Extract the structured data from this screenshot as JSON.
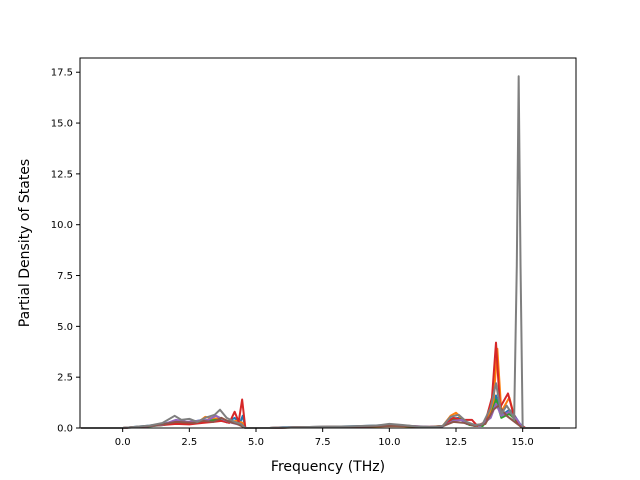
{
  "chart_data": {
    "type": "line",
    "title": "",
    "xlabel": "Frequency (THz)",
    "ylabel": "Partial Density of States",
    "xlim": [
      -1.6,
      17.0
    ],
    "ylim": [
      0,
      18.2
    ],
    "xticks": [
      0.0,
      2.5,
      5.0,
      7.5,
      10.0,
      12.5,
      15.0
    ],
    "xtick_labels": [
      "0.0",
      "2.5",
      "5.0",
      "7.5",
      "10.0",
      "12.5",
      "15.0"
    ],
    "yticks": [
      0.0,
      2.5,
      5.0,
      7.5,
      10.0,
      12.5,
      15.0,
      17.5
    ],
    "ytick_labels": [
      "0.0",
      "2.5",
      "5.0",
      "7.5",
      "10.0",
      "12.5",
      "15.0",
      "17.5"
    ],
    "grid": false,
    "legend": "none",
    "series": [
      {
        "color": "#1f77b4",
        "points": [
          [
            -1.55,
            0
          ],
          [
            0.0,
            0.0
          ],
          [
            0.5,
            0.06
          ],
          [
            1.0,
            0.12
          ],
          [
            1.5,
            0.2
          ],
          [
            2.0,
            0.35
          ],
          [
            2.3,
            0.22
          ],
          [
            2.6,
            0.3
          ],
          [
            3.0,
            0.4
          ],
          [
            3.3,
            0.35
          ],
          [
            3.6,
            0.45
          ],
          [
            3.9,
            0.28
          ],
          [
            4.2,
            0.5
          ],
          [
            4.4,
            0.25
          ],
          [
            4.5,
            0.6
          ],
          [
            4.6,
            0.0
          ],
          [
            5.5,
            0.0
          ],
          [
            6.0,
            0.04
          ],
          [
            7.0,
            0.05
          ],
          [
            8.0,
            0.07
          ],
          [
            9.0,
            0.1
          ],
          [
            10.0,
            0.15
          ],
          [
            10.5,
            0.12
          ],
          [
            11.0,
            0.08
          ],
          [
            11.5,
            0.05
          ],
          [
            12.0,
            0.1
          ],
          [
            12.3,
            0.45
          ],
          [
            12.6,
            0.5
          ],
          [
            12.9,
            0.2
          ],
          [
            13.2,
            0.1
          ],
          [
            13.5,
            0.15
          ],
          [
            13.8,
            0.8
          ],
          [
            14.0,
            1.6
          ],
          [
            14.2,
            0.6
          ],
          [
            14.5,
            0.9
          ],
          [
            14.7,
            0.6
          ],
          [
            14.9,
            0.2
          ],
          [
            15.1,
            0.0
          ],
          [
            16.4,
            0.0
          ]
        ]
      },
      {
        "color": "#ff7f0e",
        "points": [
          [
            -1.55,
            0
          ],
          [
            0.0,
            0.0
          ],
          [
            0.5,
            0.05
          ],
          [
            1.0,
            0.1
          ],
          [
            1.5,
            0.15
          ],
          [
            2.0,
            0.25
          ],
          [
            2.4,
            0.2
          ],
          [
            2.8,
            0.25
          ],
          [
            3.1,
            0.55
          ],
          [
            3.4,
            0.45
          ],
          [
            3.7,
            0.5
          ],
          [
            4.0,
            0.3
          ],
          [
            4.3,
            0.35
          ],
          [
            4.5,
            0.25
          ],
          [
            4.6,
            0.0
          ],
          [
            5.5,
            0.0
          ],
          [
            6.5,
            0.03
          ],
          [
            7.5,
            0.05
          ],
          [
            8.5,
            0.06
          ],
          [
            9.5,
            0.08
          ],
          [
            10.0,
            0.1
          ],
          [
            10.8,
            0.08
          ],
          [
            11.3,
            0.05
          ],
          [
            12.0,
            0.1
          ],
          [
            12.3,
            0.6
          ],
          [
            12.5,
            0.75
          ],
          [
            12.8,
            0.35
          ],
          [
            13.2,
            0.1
          ],
          [
            13.6,
            0.2
          ],
          [
            13.9,
            1.2
          ],
          [
            14.05,
            3.9
          ],
          [
            14.2,
            0.8
          ],
          [
            14.5,
            1.5
          ],
          [
            14.7,
            0.5
          ],
          [
            14.9,
            0.1
          ],
          [
            15.1,
            0.0
          ],
          [
            16.4,
            0.0
          ]
        ]
      },
      {
        "color": "#2ca02c",
        "points": [
          [
            -1.55,
            0
          ],
          [
            0.0,
            0.0
          ],
          [
            0.5,
            0.04
          ],
          [
            1.0,
            0.08
          ],
          [
            1.5,
            0.14
          ],
          [
            2.0,
            0.3
          ],
          [
            2.4,
            0.25
          ],
          [
            2.8,
            0.3
          ],
          [
            3.2,
            0.35
          ],
          [
            3.5,
            0.4
          ],
          [
            3.8,
            0.35
          ],
          [
            4.1,
            0.3
          ],
          [
            4.4,
            0.2
          ],
          [
            4.6,
            0.0
          ],
          [
            5.5,
            0.0
          ],
          [
            6.5,
            0.03
          ],
          [
            7.5,
            0.04
          ],
          [
            8.5,
            0.06
          ],
          [
            9.5,
            0.09
          ],
          [
            10.2,
            0.12
          ],
          [
            10.8,
            0.08
          ],
          [
            11.5,
            0.05
          ],
          [
            12.0,
            0.08
          ],
          [
            12.4,
            0.4
          ],
          [
            12.7,
            0.45
          ],
          [
            13.0,
            0.15
          ],
          [
            13.5,
            0.1
          ],
          [
            13.8,
            0.6
          ],
          [
            14.0,
            1.4
          ],
          [
            14.2,
            0.5
          ],
          [
            14.5,
            0.7
          ],
          [
            14.8,
            0.3
          ],
          [
            15.0,
            0.0
          ],
          [
            16.4,
            0.0
          ]
        ]
      },
      {
        "color": "#d62728",
        "points": [
          [
            -1.55,
            0
          ],
          [
            0.0,
            0.0
          ],
          [
            0.5,
            0.05
          ],
          [
            1.0,
            0.1
          ],
          [
            1.5,
            0.15
          ],
          [
            2.0,
            0.2
          ],
          [
            2.5,
            0.18
          ],
          [
            3.0,
            0.25
          ],
          [
            3.4,
            0.3
          ],
          [
            3.7,
            0.35
          ],
          [
            4.0,
            0.25
          ],
          [
            4.2,
            0.8
          ],
          [
            4.35,
            0.3
          ],
          [
            4.48,
            1.4
          ],
          [
            4.6,
            0.0
          ],
          [
            5.5,
            0.0
          ],
          [
            6.5,
            0.04
          ],
          [
            7.5,
            0.05
          ],
          [
            8.5,
            0.07
          ],
          [
            9.5,
            0.1
          ],
          [
            10.3,
            0.14
          ],
          [
            10.9,
            0.09
          ],
          [
            11.5,
            0.05
          ],
          [
            12.0,
            0.1
          ],
          [
            12.4,
            0.5
          ],
          [
            12.7,
            0.4
          ],
          [
            13.1,
            0.4
          ],
          [
            13.3,
            0.1
          ],
          [
            13.6,
            0.3
          ],
          [
            13.85,
            1.5
          ],
          [
            14.0,
            4.2
          ],
          [
            14.15,
            1.0
          ],
          [
            14.45,
            1.7
          ],
          [
            14.65,
            0.7
          ],
          [
            14.85,
            0.2
          ],
          [
            15.1,
            0.0
          ],
          [
            16.4,
            0.0
          ]
        ]
      },
      {
        "color": "#9467bd",
        "points": [
          [
            -1.55,
            0
          ],
          [
            0.0,
            0.0
          ],
          [
            0.5,
            0.04
          ],
          [
            1.0,
            0.09
          ],
          [
            1.5,
            0.16
          ],
          [
            2.0,
            0.4
          ],
          [
            2.4,
            0.3
          ],
          [
            2.8,
            0.35
          ],
          [
            3.2,
            0.4
          ],
          [
            3.5,
            0.6
          ],
          [
            3.8,
            0.4
          ],
          [
            4.1,
            0.25
          ],
          [
            4.4,
            0.15
          ],
          [
            4.6,
            0.0
          ],
          [
            5.5,
            0.0
          ],
          [
            6.5,
            0.03
          ],
          [
            7.5,
            0.05
          ],
          [
            8.5,
            0.06
          ],
          [
            9.5,
            0.1
          ],
          [
            10.1,
            0.12
          ],
          [
            10.8,
            0.1
          ],
          [
            11.5,
            0.06
          ],
          [
            12.0,
            0.08
          ],
          [
            12.4,
            0.35
          ],
          [
            12.7,
            0.4
          ],
          [
            13.0,
            0.2
          ],
          [
            13.4,
            0.1
          ],
          [
            13.8,
            0.5
          ],
          [
            14.0,
            1.2
          ],
          [
            14.2,
            0.6
          ],
          [
            14.5,
            0.8
          ],
          [
            14.8,
            0.4
          ],
          [
            15.0,
            0.0
          ],
          [
            16.4,
            0.0
          ]
        ]
      },
      {
        "color": "#8c564b",
        "points": [
          [
            -1.55,
            0
          ],
          [
            0.0,
            0.0
          ],
          [
            0.5,
            0.05
          ],
          [
            1.0,
            0.1
          ],
          [
            1.5,
            0.18
          ],
          [
            2.0,
            0.3
          ],
          [
            2.3,
            0.28
          ],
          [
            2.7,
            0.25
          ],
          [
            3.0,
            0.35
          ],
          [
            3.4,
            0.3
          ],
          [
            3.7,
            0.5
          ],
          [
            4.0,
            0.3
          ],
          [
            4.3,
            0.2
          ],
          [
            4.6,
            0.0
          ],
          [
            5.5,
            0.0
          ],
          [
            6.5,
            0.04
          ],
          [
            7.5,
            0.06
          ],
          [
            8.5,
            0.07
          ],
          [
            9.5,
            0.09
          ],
          [
            10.4,
            0.11
          ],
          [
            11.0,
            0.07
          ],
          [
            11.5,
            0.05
          ],
          [
            12.0,
            0.09
          ],
          [
            12.4,
            0.3
          ],
          [
            12.8,
            0.25
          ],
          [
            13.2,
            0.1
          ],
          [
            13.6,
            0.2
          ],
          [
            13.9,
            0.9
          ],
          [
            14.1,
            1.1
          ],
          [
            14.4,
            0.6
          ],
          [
            14.7,
            0.3
          ],
          [
            15.0,
            0.0
          ],
          [
            16.4,
            0.0
          ]
        ]
      },
      {
        "color": "#7f7f7f",
        "points": [
          [
            -1.55,
            0
          ],
          [
            0.0,
            0.0
          ],
          [
            0.5,
            0.06
          ],
          [
            1.0,
            0.12
          ],
          [
            1.5,
            0.25
          ],
          [
            1.95,
            0.6
          ],
          [
            2.2,
            0.4
          ],
          [
            2.5,
            0.45
          ],
          [
            2.8,
            0.3
          ],
          [
            3.1,
            0.5
          ],
          [
            3.45,
            0.65
          ],
          [
            3.65,
            0.9
          ],
          [
            3.9,
            0.5
          ],
          [
            4.2,
            0.3
          ],
          [
            4.45,
            0.2
          ],
          [
            4.6,
            0.0
          ],
          [
            5.5,
            0.0
          ],
          [
            6.5,
            0.04
          ],
          [
            7.5,
            0.06
          ],
          [
            8.5,
            0.08
          ],
          [
            9.5,
            0.12
          ],
          [
            10.0,
            0.2
          ],
          [
            10.5,
            0.15
          ],
          [
            11.0,
            0.08
          ],
          [
            11.6,
            0.05
          ],
          [
            12.0,
            0.1
          ],
          [
            12.3,
            0.55
          ],
          [
            12.6,
            0.65
          ],
          [
            12.9,
            0.3
          ],
          [
            13.2,
            0.15
          ],
          [
            13.5,
            0.2
          ],
          [
            13.8,
            1.0
          ],
          [
            14.0,
            2.2
          ],
          [
            14.2,
            0.7
          ],
          [
            14.4,
            1.1
          ],
          [
            14.55,
            0.8
          ],
          [
            14.68,
            0.4
          ],
          [
            14.78,
            8.0
          ],
          [
            14.85,
            17.3
          ],
          [
            14.92,
            8.0
          ],
          [
            15.0,
            0.0
          ],
          [
            16.4,
            0.0
          ]
        ]
      }
    ]
  }
}
